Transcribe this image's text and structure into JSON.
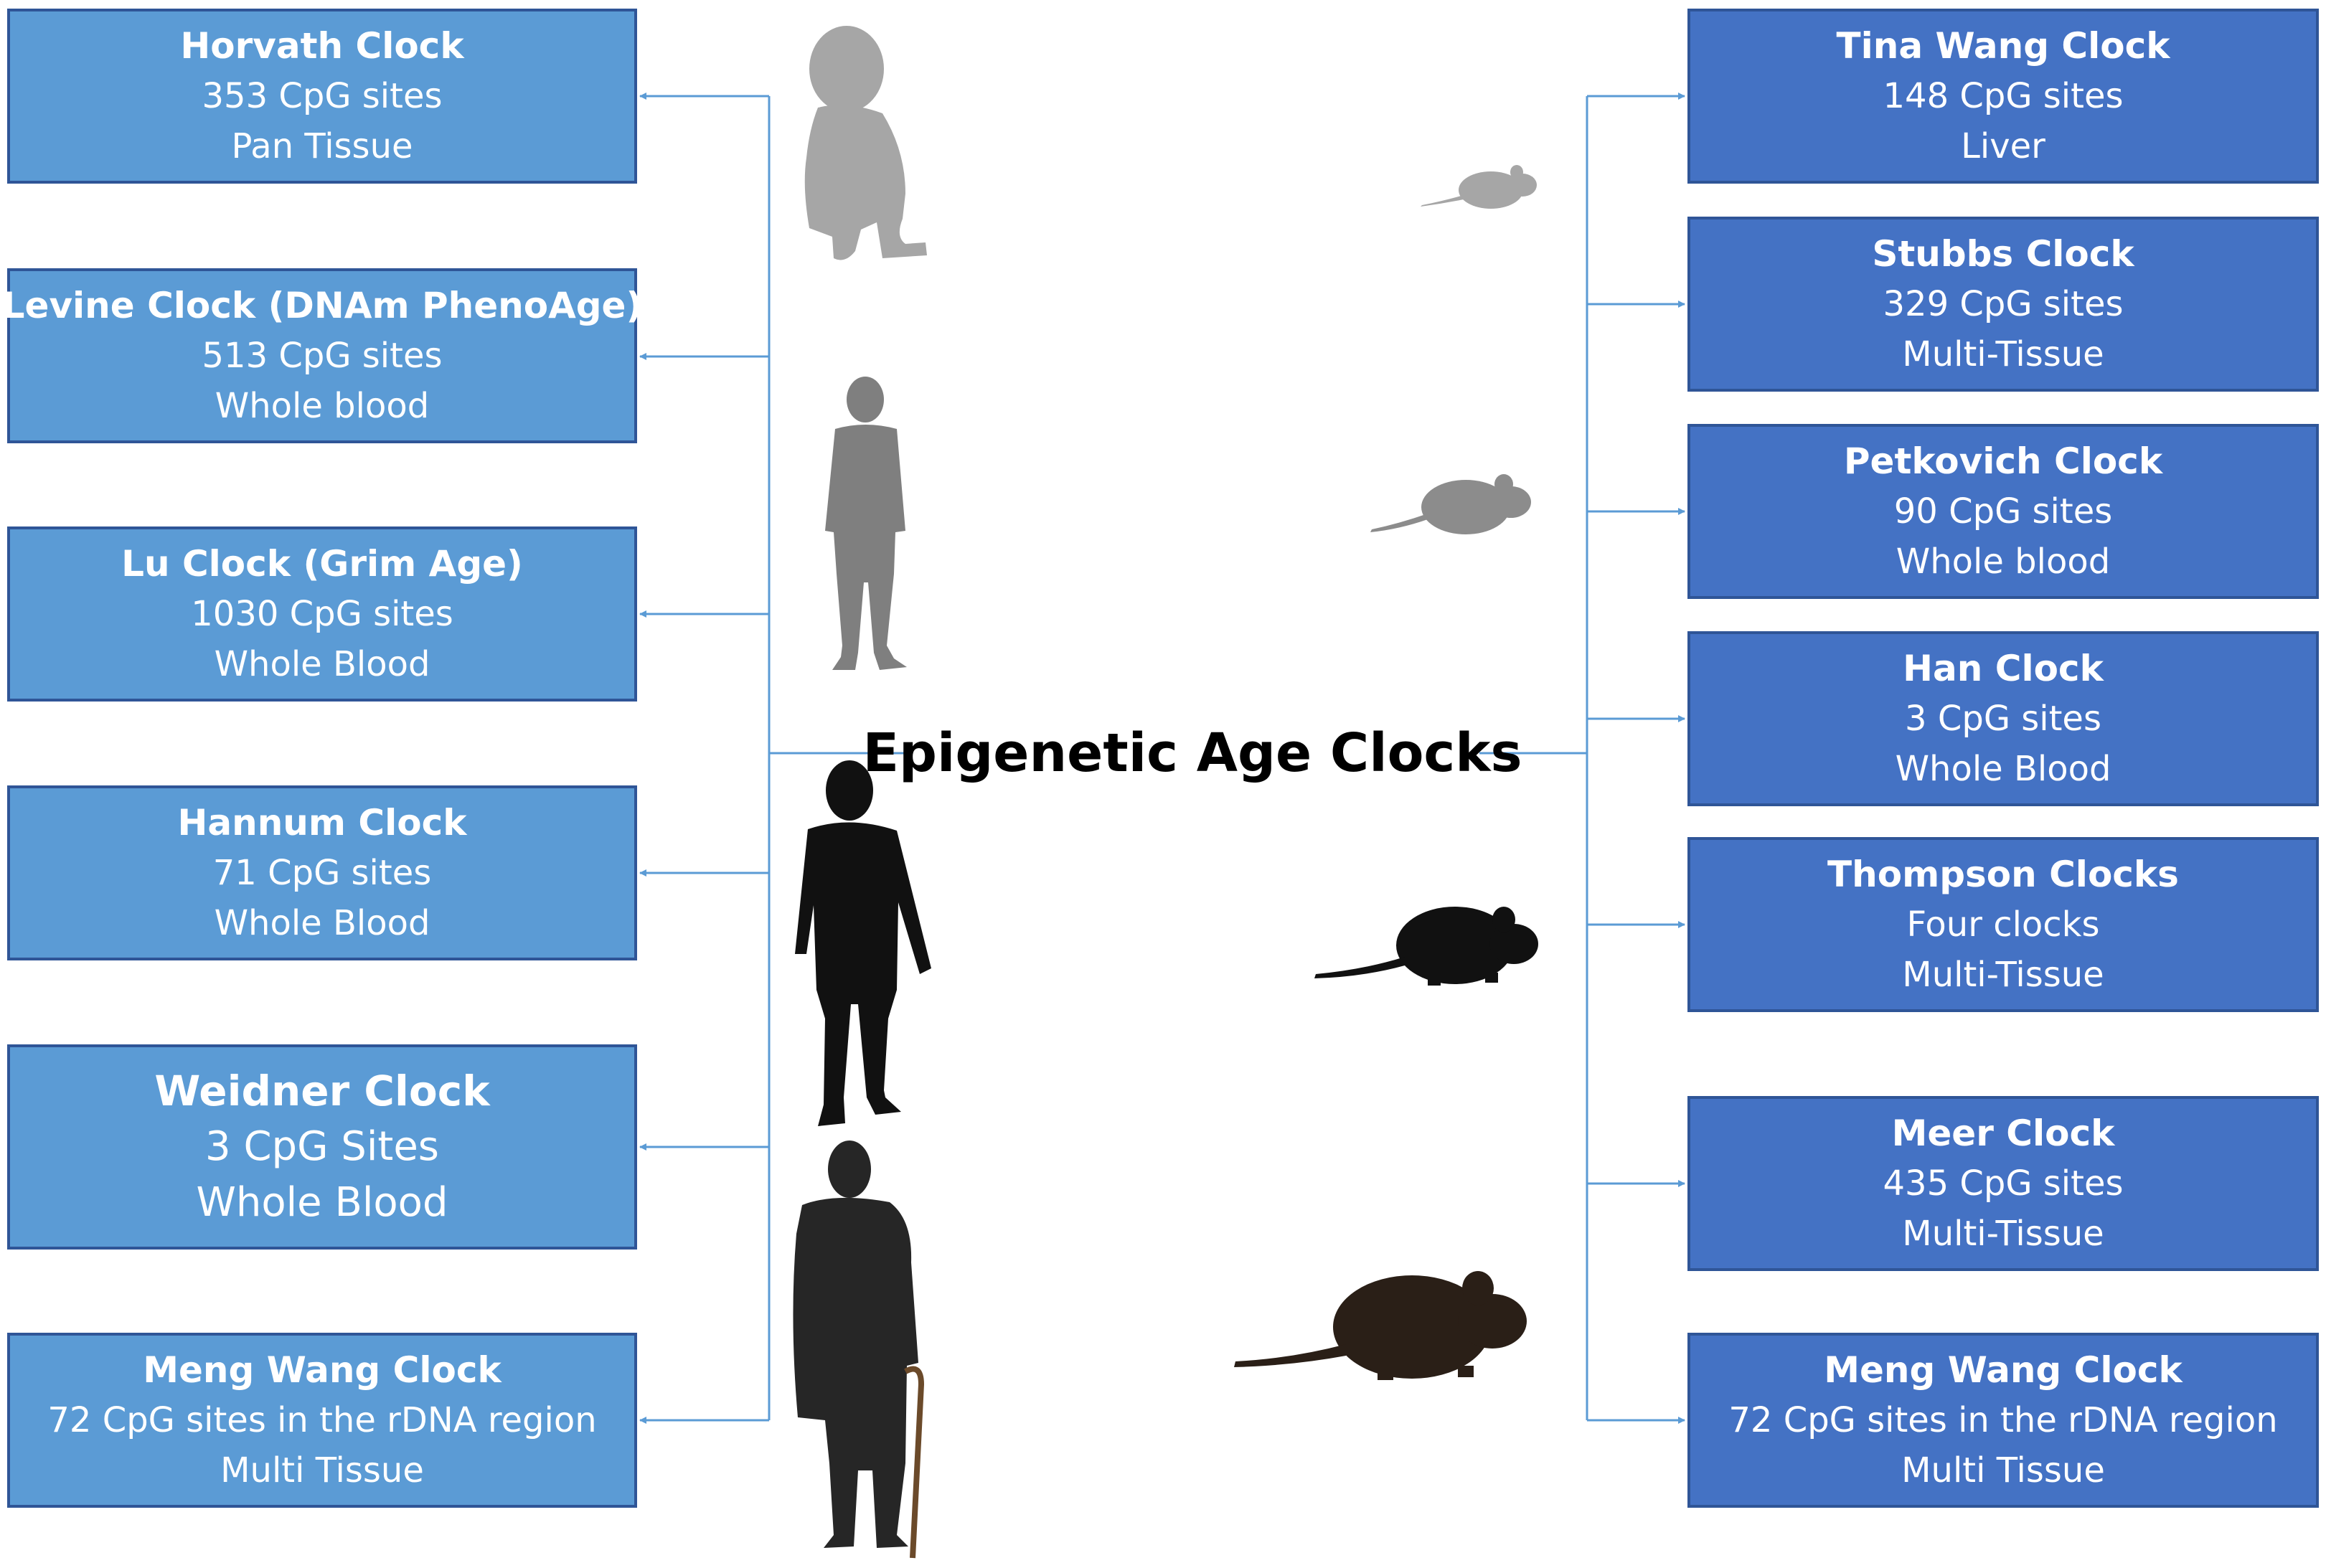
{
  "title": "Epigenetic Age Clocks",
  "colors": {
    "left_box": "#5b9bd5",
    "right_box": "#4472c4",
    "box_border": "#2f5597",
    "connector": "#5b9bd5",
    "sil_light": "#a6a6a6",
    "sil_mid": "#7f7f7f",
    "sil_dark": "#111111"
  },
  "silhouettes": [
    "baby-icon",
    "adult-man-icon",
    "young-man-icon",
    "elderly-man-cane-icon",
    "small-mouse-icon",
    "medium-mouse-icon",
    "large-rat-icon",
    "largest-rat-icon"
  ],
  "left_clocks": [
    {
      "name": "Horvath Clock",
      "sites": "353 CpG sites",
      "tissue": "Pan Tissue"
    },
    {
      "name": "Levine Clock (DNAm PhenoAge)",
      "sites": "513 CpG sites",
      "tissue": "Whole blood"
    },
    {
      "name": "Lu Clock (Grim Age)",
      "sites": "1030 CpG sites",
      "tissue": "Whole Blood"
    },
    {
      "name": "Hannum Clock",
      "sites": "71 CpG sites",
      "tissue": "Whole Blood"
    },
    {
      "name": "Weidner Clock",
      "sites": "3 CpG Sites",
      "tissue": "Whole Blood"
    },
    {
      "name": "Meng Wang Clock",
      "sites": "72 CpG sites in the rDNA region",
      "tissue": "Multi Tissue"
    }
  ],
  "right_clocks": [
    {
      "name": "Tina Wang Clock",
      "sites": "148 CpG sites",
      "tissue": "Liver"
    },
    {
      "name": "Stubbs Clock",
      "sites": "329 CpG sites",
      "tissue": "Multi-Tissue"
    },
    {
      "name": "Petkovich Clock",
      "sites": "90 CpG sites",
      "tissue": "Whole blood"
    },
    {
      "name": "Han Clock",
      "sites": "3 CpG sites",
      "tissue": "Whole Blood"
    },
    {
      "name": "Thompson Clocks",
      "sites": "Four clocks",
      "tissue": "Multi-Tissue"
    },
    {
      "name": "Meer Clock",
      "sites": "435 CpG sites",
      "tissue": "Multi-Tissue"
    },
    {
      "name": "Meng Wang Clock",
      "sites": "72 CpG sites in the rDNA region",
      "tissue": "Multi Tissue"
    }
  ]
}
